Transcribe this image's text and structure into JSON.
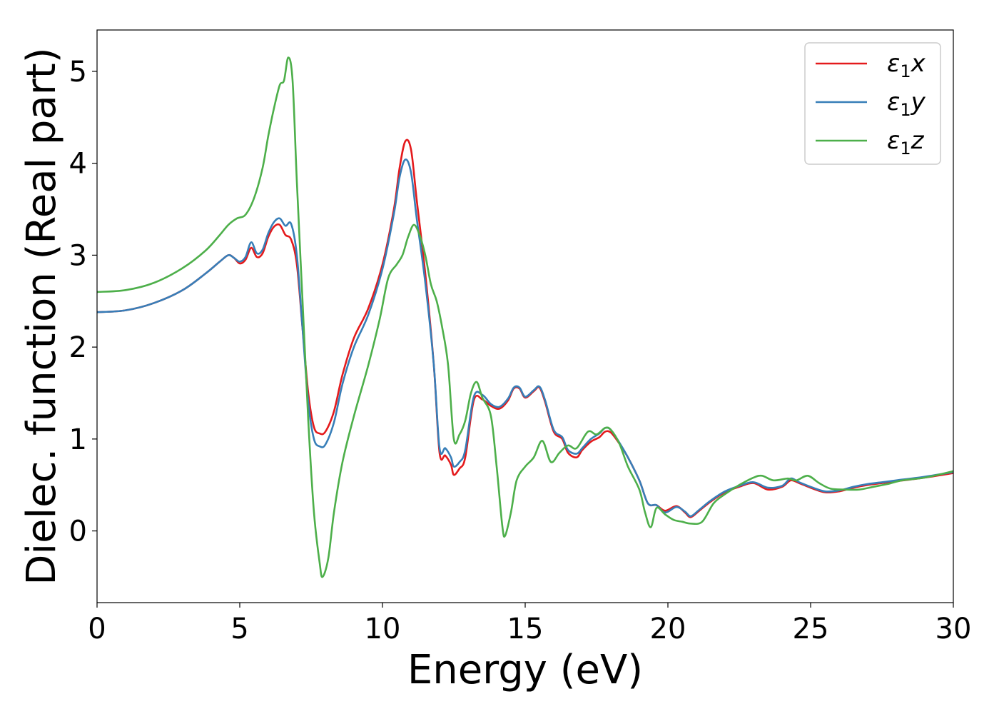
{
  "chart_data": {
    "type": "line",
    "title": "",
    "xlabel": "Energy (eV)",
    "ylabel": "Dielec. function (Real part)",
    "xlim": [
      0,
      30
    ],
    "ylim": [
      -0.78,
      5.45
    ],
    "xticks": [
      0,
      5,
      10,
      15,
      20,
      25,
      30
    ],
    "yticks": [
      0,
      1,
      2,
      3,
      4,
      5
    ],
    "grid": false,
    "legend_position": "top-right",
    "series": [
      {
        "name": "ε1x",
        "legend": {
          "symbol": "ε",
          "sub": "1",
          "suffix": "x"
        },
        "color": "#e41a1c",
        "points": [
          [
            0,
            2.38
          ],
          [
            1,
            2.4
          ],
          [
            2,
            2.48
          ],
          [
            3,
            2.62
          ],
          [
            3.8,
            2.8
          ],
          [
            4.3,
            2.93
          ],
          [
            4.6,
            3.0
          ],
          [
            4.8,
            2.97
          ],
          [
            5.0,
            2.91
          ],
          [
            5.2,
            2.95
          ],
          [
            5.4,
            3.08
          ],
          [
            5.6,
            2.98
          ],
          [
            5.8,
            3.02
          ],
          [
            6.0,
            3.2
          ],
          [
            6.2,
            3.31
          ],
          [
            6.4,
            3.33
          ],
          [
            6.6,
            3.22
          ],
          [
            6.8,
            3.17
          ],
          [
            7.0,
            2.9
          ],
          [
            7.2,
            2.2
          ],
          [
            7.4,
            1.5
          ],
          [
            7.6,
            1.13
          ],
          [
            7.8,
            1.06
          ],
          [
            8.0,
            1.08
          ],
          [
            8.3,
            1.3
          ],
          [
            8.6,
            1.7
          ],
          [
            9.0,
            2.1
          ],
          [
            9.5,
            2.42
          ],
          [
            10.0,
            2.9
          ],
          [
            10.4,
            3.5
          ],
          [
            10.6,
            3.95
          ],
          [
            10.8,
            4.24
          ],
          [
            11.0,
            4.15
          ],
          [
            11.2,
            3.6
          ],
          [
            11.5,
            2.8
          ],
          [
            11.8,
            1.8
          ],
          [
            12.0,
            0.85
          ],
          [
            12.2,
            0.82
          ],
          [
            12.4,
            0.72
          ],
          [
            12.5,
            0.61
          ],
          [
            12.7,
            0.68
          ],
          [
            12.9,
            0.8
          ],
          [
            13.2,
            1.42
          ],
          [
            13.5,
            1.43
          ],
          [
            13.8,
            1.36
          ],
          [
            14.1,
            1.33
          ],
          [
            14.4,
            1.42
          ],
          [
            14.6,
            1.55
          ],
          [
            14.8,
            1.55
          ],
          [
            15.0,
            1.45
          ],
          [
            15.3,
            1.52
          ],
          [
            15.5,
            1.56
          ],
          [
            15.7,
            1.4
          ],
          [
            16.0,
            1.08
          ],
          [
            16.3,
            1.0
          ],
          [
            16.5,
            0.85
          ],
          [
            16.8,
            0.8
          ],
          [
            17.0,
            0.88
          ],
          [
            17.3,
            0.97
          ],
          [
            17.6,
            1.02
          ],
          [
            17.8,
            1.08
          ],
          [
            18.0,
            1.07
          ],
          [
            18.3,
            0.95
          ],
          [
            18.6,
            0.8
          ],
          [
            19.0,
            0.55
          ],
          [
            19.3,
            0.3
          ],
          [
            19.6,
            0.28
          ],
          [
            19.9,
            0.22
          ],
          [
            20.3,
            0.27
          ],
          [
            20.6,
            0.2
          ],
          [
            20.8,
            0.15
          ],
          [
            21.1,
            0.22
          ],
          [
            21.5,
            0.32
          ],
          [
            22.0,
            0.42
          ],
          [
            22.5,
            0.48
          ],
          [
            23.0,
            0.52
          ],
          [
            23.5,
            0.45
          ],
          [
            24.0,
            0.48
          ],
          [
            24.3,
            0.55
          ],
          [
            24.6,
            0.52
          ],
          [
            25.0,
            0.47
          ],
          [
            25.5,
            0.42
          ],
          [
            26.0,
            0.43
          ],
          [
            26.5,
            0.47
          ],
          [
            27.0,
            0.5
          ],
          [
            27.5,
            0.52
          ],
          [
            28.0,
            0.54
          ],
          [
            29.0,
            0.58
          ],
          [
            30.0,
            0.63
          ]
        ]
      },
      {
        "name": "ε1y",
        "legend": {
          "symbol": "ε",
          "sub": "1",
          "suffix": "y"
        },
        "color": "#377eb8",
        "points": [
          [
            0,
            2.38
          ],
          [
            1,
            2.4
          ],
          [
            2,
            2.48
          ],
          [
            3,
            2.62
          ],
          [
            3.8,
            2.8
          ],
          [
            4.3,
            2.93
          ],
          [
            4.6,
            3.0
          ],
          [
            4.8,
            2.97
          ],
          [
            5.0,
            2.93
          ],
          [
            5.2,
            2.98
          ],
          [
            5.4,
            3.14
          ],
          [
            5.6,
            3.02
          ],
          [
            5.8,
            3.06
          ],
          [
            6.0,
            3.24
          ],
          [
            6.2,
            3.36
          ],
          [
            6.4,
            3.4
          ],
          [
            6.6,
            3.32
          ],
          [
            6.8,
            3.34
          ],
          [
            7.0,
            3.0
          ],
          [
            7.2,
            2.2
          ],
          [
            7.4,
            1.4
          ],
          [
            7.6,
            1.0
          ],
          [
            7.8,
            0.92
          ],
          [
            8.0,
            0.94
          ],
          [
            8.3,
            1.18
          ],
          [
            8.6,
            1.6
          ],
          [
            9.0,
            2.0
          ],
          [
            9.5,
            2.35
          ],
          [
            10.0,
            2.85
          ],
          [
            10.4,
            3.45
          ],
          [
            10.6,
            3.85
          ],
          [
            10.8,
            4.04
          ],
          [
            11.0,
            3.9
          ],
          [
            11.2,
            3.4
          ],
          [
            11.5,
            2.7
          ],
          [
            11.8,
            1.8
          ],
          [
            12.0,
            0.9
          ],
          [
            12.2,
            0.9
          ],
          [
            12.4,
            0.8
          ],
          [
            12.5,
            0.7
          ],
          [
            12.7,
            0.75
          ],
          [
            12.9,
            0.88
          ],
          [
            13.2,
            1.46
          ],
          [
            13.5,
            1.48
          ],
          [
            13.8,
            1.38
          ],
          [
            14.1,
            1.35
          ],
          [
            14.4,
            1.44
          ],
          [
            14.6,
            1.56
          ],
          [
            14.8,
            1.56
          ],
          [
            15.0,
            1.46
          ],
          [
            15.3,
            1.53
          ],
          [
            15.5,
            1.57
          ],
          [
            15.7,
            1.42
          ],
          [
            16.0,
            1.1
          ],
          [
            16.3,
            1.02
          ],
          [
            16.5,
            0.88
          ],
          [
            16.8,
            0.84
          ],
          [
            17.0,
            0.9
          ],
          [
            17.3,
            1.0
          ],
          [
            17.6,
            1.06
          ],
          [
            17.8,
            1.12
          ],
          [
            18.0,
            1.1
          ],
          [
            18.3,
            0.96
          ],
          [
            18.6,
            0.8
          ],
          [
            19.0,
            0.55
          ],
          [
            19.3,
            0.3
          ],
          [
            19.6,
            0.28
          ],
          [
            19.9,
            0.2
          ],
          [
            20.3,
            0.26
          ],
          [
            20.6,
            0.21
          ],
          [
            20.8,
            0.16
          ],
          [
            21.1,
            0.23
          ],
          [
            21.5,
            0.33
          ],
          [
            22.0,
            0.43
          ],
          [
            22.5,
            0.49
          ],
          [
            23.0,
            0.53
          ],
          [
            23.5,
            0.47
          ],
          [
            24.0,
            0.49
          ],
          [
            24.3,
            0.57
          ],
          [
            24.6,
            0.53
          ],
          [
            25.0,
            0.48
          ],
          [
            25.5,
            0.43
          ],
          [
            26.0,
            0.44
          ],
          [
            26.5,
            0.48
          ],
          [
            27.0,
            0.51
          ],
          [
            27.5,
            0.53
          ],
          [
            28.0,
            0.55
          ],
          [
            29.0,
            0.59
          ],
          [
            30.0,
            0.64
          ]
        ]
      },
      {
        "name": "ε1z",
        "legend": {
          "symbol": "ε",
          "sub": "1",
          "suffix": "z"
        },
        "color": "#4daf4a",
        "points": [
          [
            0,
            2.6
          ],
          [
            1,
            2.62
          ],
          [
            2,
            2.7
          ],
          [
            3,
            2.86
          ],
          [
            3.8,
            3.05
          ],
          [
            4.3,
            3.22
          ],
          [
            4.6,
            3.33
          ],
          [
            4.9,
            3.4
          ],
          [
            5.2,
            3.44
          ],
          [
            5.5,
            3.62
          ],
          [
            5.8,
            3.95
          ],
          [
            6.0,
            4.3
          ],
          [
            6.2,
            4.6
          ],
          [
            6.4,
            4.85
          ],
          [
            6.55,
            4.9
          ],
          [
            6.7,
            5.15
          ],
          [
            6.85,
            4.9
          ],
          [
            7.0,
            3.8
          ],
          [
            7.2,
            2.5
          ],
          [
            7.4,
            1.2
          ],
          [
            7.6,
            0.2
          ],
          [
            7.8,
            -0.35
          ],
          [
            7.9,
            -0.5
          ],
          [
            8.1,
            -0.3
          ],
          [
            8.3,
            0.2
          ],
          [
            8.6,
            0.75
          ],
          [
            9.0,
            1.25
          ],
          [
            9.5,
            1.8
          ],
          [
            9.9,
            2.3
          ],
          [
            10.2,
            2.75
          ],
          [
            10.5,
            2.9
          ],
          [
            10.7,
            3.0
          ],
          [
            10.9,
            3.2
          ],
          [
            11.1,
            3.33
          ],
          [
            11.3,
            3.22
          ],
          [
            11.5,
            3.0
          ],
          [
            11.7,
            2.68
          ],
          [
            11.9,
            2.5
          ],
          [
            12.1,
            2.2
          ],
          [
            12.3,
            1.8
          ],
          [
            12.5,
            1.0
          ],
          [
            12.7,
            1.05
          ],
          [
            12.9,
            1.2
          ],
          [
            13.1,
            1.5
          ],
          [
            13.3,
            1.62
          ],
          [
            13.5,
            1.45
          ],
          [
            13.8,
            1.25
          ],
          [
            14.0,
            0.7
          ],
          [
            14.2,
            0.05
          ],
          [
            14.3,
            -0.05
          ],
          [
            14.5,
            0.2
          ],
          [
            14.7,
            0.55
          ],
          [
            15.0,
            0.7
          ],
          [
            15.3,
            0.8
          ],
          [
            15.6,
            0.98
          ],
          [
            15.9,
            0.75
          ],
          [
            16.2,
            0.85
          ],
          [
            16.5,
            0.93
          ],
          [
            16.8,
            0.9
          ],
          [
            17.2,
            1.08
          ],
          [
            17.5,
            1.05
          ],
          [
            17.8,
            1.12
          ],
          [
            18.0,
            1.1
          ],
          [
            18.3,
            0.95
          ],
          [
            18.6,
            0.7
          ],
          [
            19.0,
            0.45
          ],
          [
            19.2,
            0.2
          ],
          [
            19.4,
            0.04
          ],
          [
            19.6,
            0.25
          ],
          [
            19.9,
            0.18
          ],
          [
            20.2,
            0.12
          ],
          [
            20.5,
            0.1
          ],
          [
            20.8,
            0.08
          ],
          [
            21.2,
            0.1
          ],
          [
            21.6,
            0.3
          ],
          [
            22.0,
            0.4
          ],
          [
            22.5,
            0.5
          ],
          [
            23.0,
            0.58
          ],
          [
            23.3,
            0.6
          ],
          [
            23.7,
            0.55
          ],
          [
            24.2,
            0.57
          ],
          [
            24.5,
            0.55
          ],
          [
            24.9,
            0.6
          ],
          [
            25.3,
            0.52
          ],
          [
            25.7,
            0.46
          ],
          [
            26.2,
            0.45
          ],
          [
            26.7,
            0.45
          ],
          [
            27.2,
            0.48
          ],
          [
            27.7,
            0.51
          ],
          [
            28.2,
            0.55
          ],
          [
            29.0,
            0.58
          ],
          [
            30.0,
            0.65
          ]
        ]
      }
    ]
  }
}
